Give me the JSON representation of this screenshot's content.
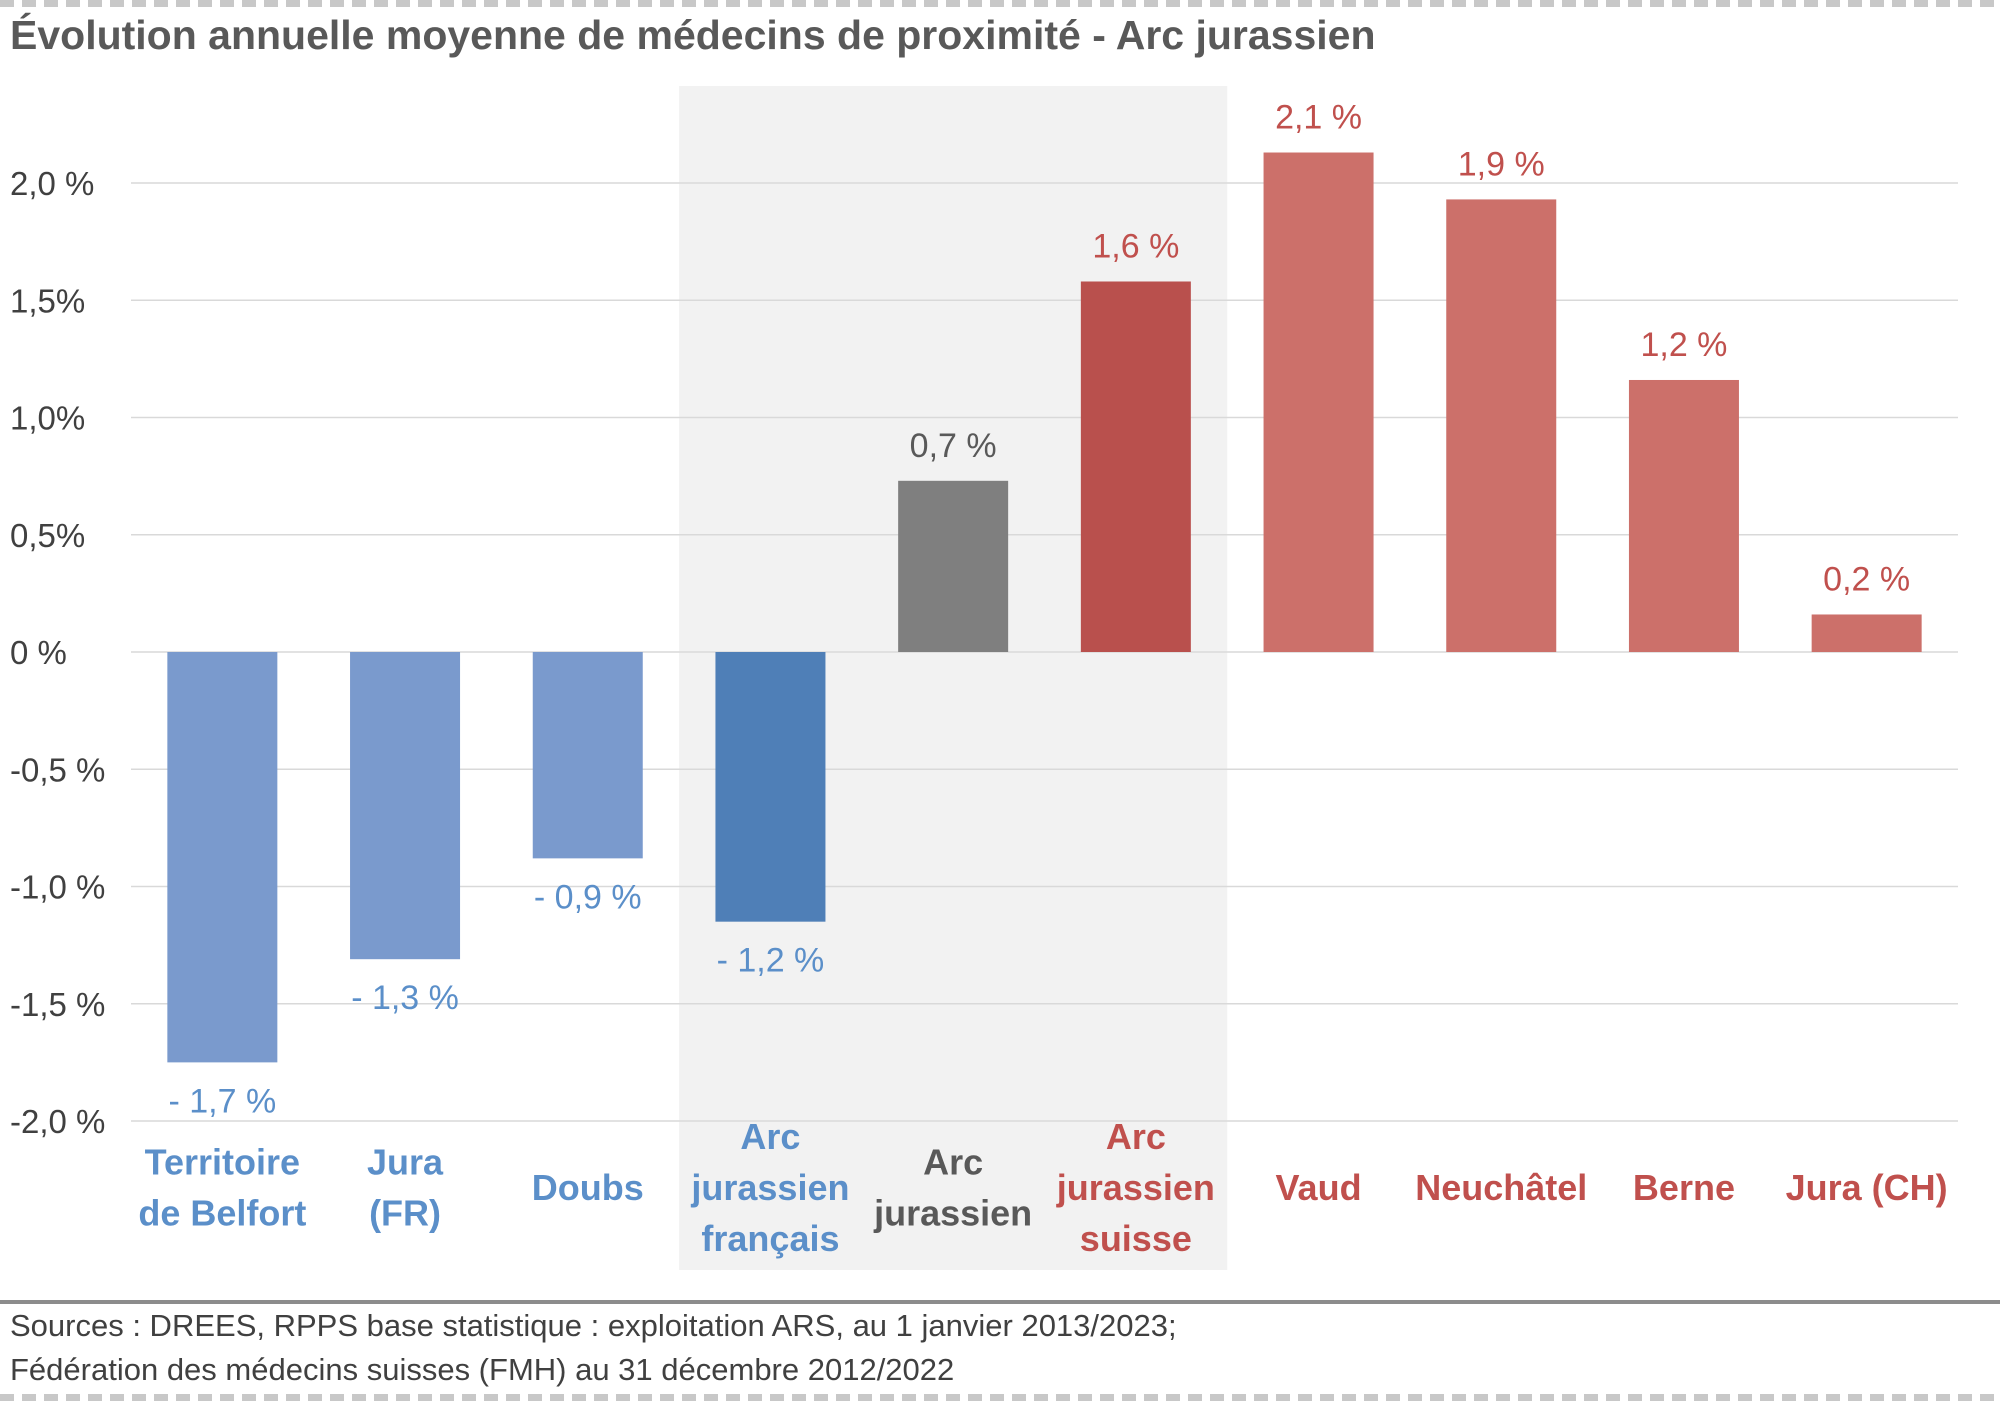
{
  "title": "Évolution annuelle moyenne de médecins de proximité - Arc jurassien",
  "sources": [
    "Sources : DREES, RPPS base statistique : exploitation ARS, au  1 janvier 2013/2023;",
    "Fédération des médecins suisses (FMH) au 31 décembre 2012/2022"
  ],
  "chart_data": {
    "type": "bar",
    "title": "Évolution annuelle moyenne de médecins de proximité - Arc jurassien",
    "xlabel": "",
    "ylabel": "",
    "ylim": [
      -2.0,
      2.0
    ],
    "grid": true,
    "legend": "none",
    "y_ticks": [
      {
        "value": 2.0,
        "label": "2,0 %"
      },
      {
        "value": 1.5,
        "label": "1,5%"
      },
      {
        "value": 1.0,
        "label": "1,0%"
      },
      {
        "value": 0.5,
        "label": "0,5%"
      },
      {
        "value": 0.0,
        "label": "0 %"
      },
      {
        "value": -0.5,
        "label": "-0,5 %"
      },
      {
        "value": -1.0,
        "label": "-1,0 %"
      },
      {
        "value": -1.5,
        "label": "-1,5 %"
      },
      {
        "value": -2.0,
        "label": "-2,0 %"
      }
    ],
    "highlight_band": {
      "from_index": 3,
      "to_index": 5,
      "color": "#f2f2f2"
    },
    "categories": [
      {
        "label": [
          "Territoire",
          "de Belfort"
        ],
        "value": -1.75,
        "value_label": "- 1,7 %",
        "bar_color": "#7a9acd",
        "text_color": "#5b8fc9"
      },
      {
        "label": [
          "Jura",
          "(FR)"
        ],
        "value": -1.31,
        "value_label": "- 1,3 %",
        "bar_color": "#7a9acd",
        "text_color": "#5b8fc9"
      },
      {
        "label": [
          "Doubs"
        ],
        "value": -0.88,
        "value_label": "- 0,9 %",
        "bar_color": "#7a9acd",
        "text_color": "#5b8fc9"
      },
      {
        "label": [
          "Arc",
          "jurassien",
          "français"
        ],
        "value": -1.15,
        "value_label": "- 1,2 %",
        "bar_color": "#4f7fb7",
        "text_color": "#5b8fc9"
      },
      {
        "label": [
          "Arc",
          "jurassien"
        ],
        "value": 0.73,
        "value_label": "0,7 %",
        "bar_color": "#7f7f7f",
        "text_color": "#595959"
      },
      {
        "label": [
          "Arc",
          "jurassien",
          "suisse"
        ],
        "value": 1.58,
        "value_label": "1,6 %",
        "bar_color": "#b9504d",
        "text_color": "#c0504d"
      },
      {
        "label": [
          "Vaud"
        ],
        "value": 2.13,
        "value_label": "2,1 %",
        "bar_color": "#cc706a",
        "text_color": "#c0504d"
      },
      {
        "label": [
          "Neuchâtel"
        ],
        "value": 1.93,
        "value_label": "1,9 %",
        "bar_color": "#cc706a",
        "text_color": "#c0504d"
      },
      {
        "label": [
          "Berne"
        ],
        "value": 1.16,
        "value_label": "1,2 %",
        "bar_color": "#cc706a",
        "text_color": "#c0504d"
      },
      {
        "label": [
          "Jura (CH)"
        ],
        "value": 0.16,
        "value_label": "0,2 %",
        "bar_color": "#cc706a",
        "text_color": "#c0504d"
      }
    ]
  }
}
